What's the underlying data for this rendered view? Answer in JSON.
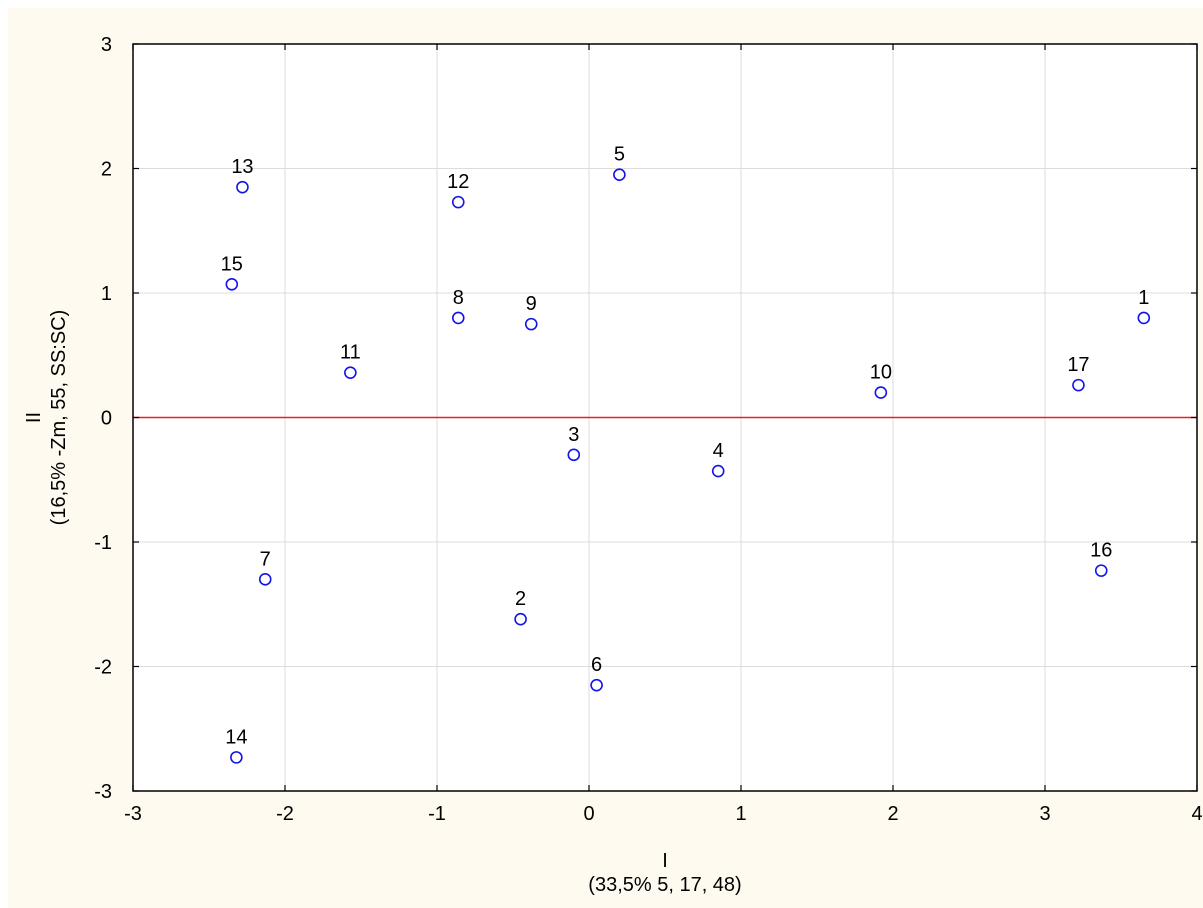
{
  "chart_data": {
    "type": "scatter",
    "xlabel": "I",
    "xlabel_sub": "(33,5% 5, 17, 48)",
    "ylabel": "II",
    "ylabel_sub": "(16,5% -Zm, 55, SS:SC)",
    "xlim": [
      -3,
      4
    ],
    "ylim": [
      -3,
      3
    ],
    "xticks": [
      -3,
      -2,
      -1,
      0,
      1,
      2,
      3,
      4
    ],
    "yticks": [
      -3,
      -2,
      -1,
      0,
      1,
      2,
      3
    ],
    "xtick_labels": [
      "-3",
      "-2",
      "-1",
      "0",
      "1",
      "2",
      "3",
      "4"
    ],
    "ytick_labels": [
      "-3",
      "-2",
      "-1",
      "0",
      "1",
      "2",
      "3"
    ],
    "grid": true,
    "reference_line": {
      "y": 0,
      "color": "#e8202a"
    },
    "marker_color": "#1414e6",
    "points": [
      {
        "label": "1",
        "x": 3.65,
        "y": 0.8
      },
      {
        "label": "2",
        "x": -0.45,
        "y": -1.62
      },
      {
        "label": "3",
        "x": -0.1,
        "y": -0.3
      },
      {
        "label": "4",
        "x": 0.85,
        "y": -0.43
      },
      {
        "label": "5",
        "x": 0.2,
        "y": 1.95
      },
      {
        "label": "6",
        "x": 0.05,
        "y": -2.15
      },
      {
        "label": "7",
        "x": -2.13,
        "y": -1.3
      },
      {
        "label": "8",
        "x": -0.86,
        "y": 0.8
      },
      {
        "label": "9",
        "x": -0.38,
        "y": 0.75
      },
      {
        "label": "10",
        "x": 1.92,
        "y": 0.2
      },
      {
        "label": "11",
        "x": -1.57,
        "y": 0.36
      },
      {
        "label": "12",
        "x": -0.86,
        "y": 1.73
      },
      {
        "label": "13",
        "x": -2.28,
        "y": 1.85
      },
      {
        "label": "14",
        "x": -2.32,
        "y": -2.73
      },
      {
        "label": "15",
        "x": -2.35,
        "y": 1.07
      },
      {
        "label": "16",
        "x": 3.37,
        "y": -1.23
      },
      {
        "label": "17",
        "x": 3.22,
        "y": 0.26
      }
    ]
  }
}
